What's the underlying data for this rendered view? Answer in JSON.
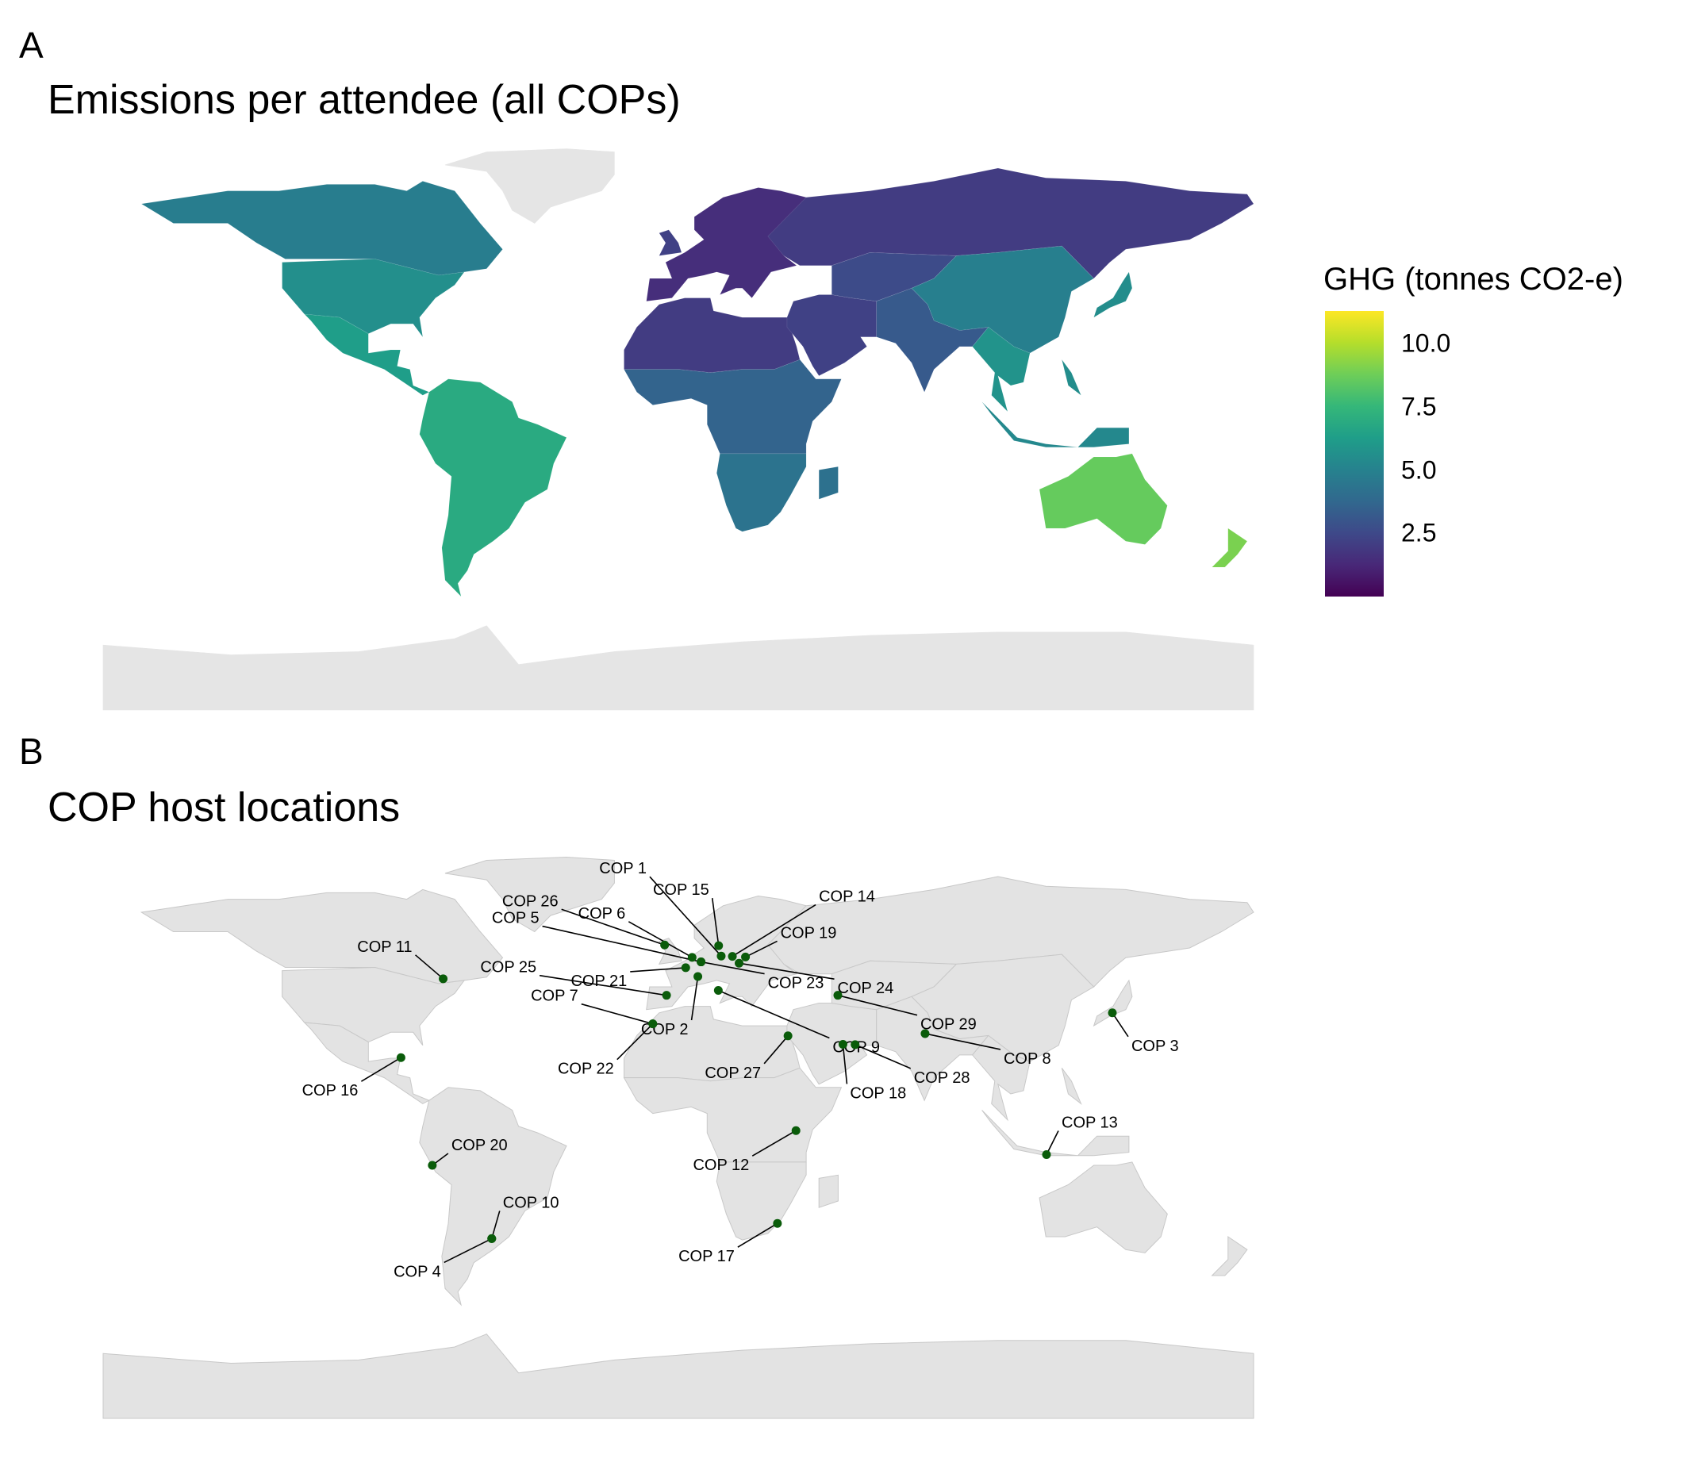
{
  "panel_a": {
    "tag": "A",
    "title": "Emissions per attendee (all COPs)",
    "legend": {
      "title": "GHG (tonnes CO2-e)",
      "colormap": "viridis",
      "range": [
        0,
        11.3
      ],
      "ticks": [
        {
          "value": 10.0,
          "label": "10.0"
        },
        {
          "value": 7.5,
          "label": "7.5"
        },
        {
          "value": 5.0,
          "label": "5.0"
        },
        {
          "value": 2.5,
          "label": "2.5"
        }
      ]
    },
    "regions": [
      {
        "name": "Canada",
        "value": 4.8
      },
      {
        "name": "United States",
        "value": 5.6
      },
      {
        "name": "Mexico & Central America",
        "value": 6.3
      },
      {
        "name": "South America",
        "value": 6.9
      },
      {
        "name": "Europe",
        "value": 1.5
      },
      {
        "name": "North Africa",
        "value": 2.0
      },
      {
        "name": "Sub-Saharan Africa",
        "value": 3.6
      },
      {
        "name": "Southern Africa",
        "value": 4.3
      },
      {
        "name": "Middle East",
        "value": 2.2
      },
      {
        "name": "Russia",
        "value": 2.0
      },
      {
        "name": "South Asia",
        "value": 3.2
      },
      {
        "name": "China",
        "value": 4.9
      },
      {
        "name": "Southeast Asia",
        "value": 5.8
      },
      {
        "name": "Japan",
        "value": 5.5
      },
      {
        "name": "Australia",
        "value": 8.6
      },
      {
        "name": "New Zealand",
        "value": 9.0
      },
      {
        "name": "Greenland",
        "value": null
      },
      {
        "name": "Antarctica",
        "value": null
      }
    ],
    "no_data_color": "#e5e5e5"
  },
  "panel_b": {
    "tag": "B",
    "title": "COP host locations",
    "point_color": "#0a5c0a",
    "land_color": "#e3e3e3",
    "sites": [
      {
        "label": "COP 1",
        "lon": 13.4,
        "lat": 52.5
      },
      {
        "label": "COP 2",
        "lon": 6.1,
        "lat": 46.2
      },
      {
        "label": "COP 3",
        "lon": 135.8,
        "lat": 35.0
      },
      {
        "label": "COP 4",
        "lon": -58.4,
        "lat": -34.6
      },
      {
        "label": "COP 5",
        "lon": 7.1,
        "lat": 50.7
      },
      {
        "label": "COP 6",
        "lon": 4.3,
        "lat": 52.1
      },
      {
        "label": "COP 7",
        "lon": -8.0,
        "lat": 31.6
      },
      {
        "label": "COP 8",
        "lon": 77.2,
        "lat": 28.6
      },
      {
        "label": "COP 9",
        "lon": 12.5,
        "lat": 41.9
      },
      {
        "label": "COP 10",
        "lon": -58.4,
        "lat": -34.6
      },
      {
        "label": "COP 11",
        "lon": -73.6,
        "lat": 45.5
      },
      {
        "label": "COP 12",
        "lon": 36.8,
        "lat": -1.3
      },
      {
        "label": "COP 13",
        "lon": 115.2,
        "lat": -8.7
      },
      {
        "label": "COP 14",
        "lon": 16.9,
        "lat": 52.4
      },
      {
        "label": "COP 15",
        "lon": 12.6,
        "lat": 55.7
      },
      {
        "label": "COP 16",
        "lon": -86.8,
        "lat": 21.2
      },
      {
        "label": "COP 17",
        "lon": 31.0,
        "lat": -29.9
      },
      {
        "label": "COP 18",
        "lon": 51.5,
        "lat": 25.3
      },
      {
        "label": "COP 19",
        "lon": 21.0,
        "lat": 52.2
      },
      {
        "label": "COP 20",
        "lon": -77.0,
        "lat": -12.0
      },
      {
        "label": "COP 21",
        "lon": 2.3,
        "lat": 48.9
      },
      {
        "label": "COP 22",
        "lon": -8.0,
        "lat": 31.6
      },
      {
        "label": "COP 23",
        "lon": 7.1,
        "lat": 50.7
      },
      {
        "label": "COP 24",
        "lon": 19.0,
        "lat": 50.3
      },
      {
        "label": "COP 25",
        "lon": -3.7,
        "lat": 40.4
      },
      {
        "label": "COP 26",
        "lon": -4.3,
        "lat": 55.9
      },
      {
        "label": "COP 27",
        "lon": 34.3,
        "lat": 27.9
      },
      {
        "label": "COP 28",
        "lon": 55.3,
        "lat": 25.2
      },
      {
        "label": "COP 29",
        "lon": 49.9,
        "lat": 40.4
      }
    ]
  }
}
